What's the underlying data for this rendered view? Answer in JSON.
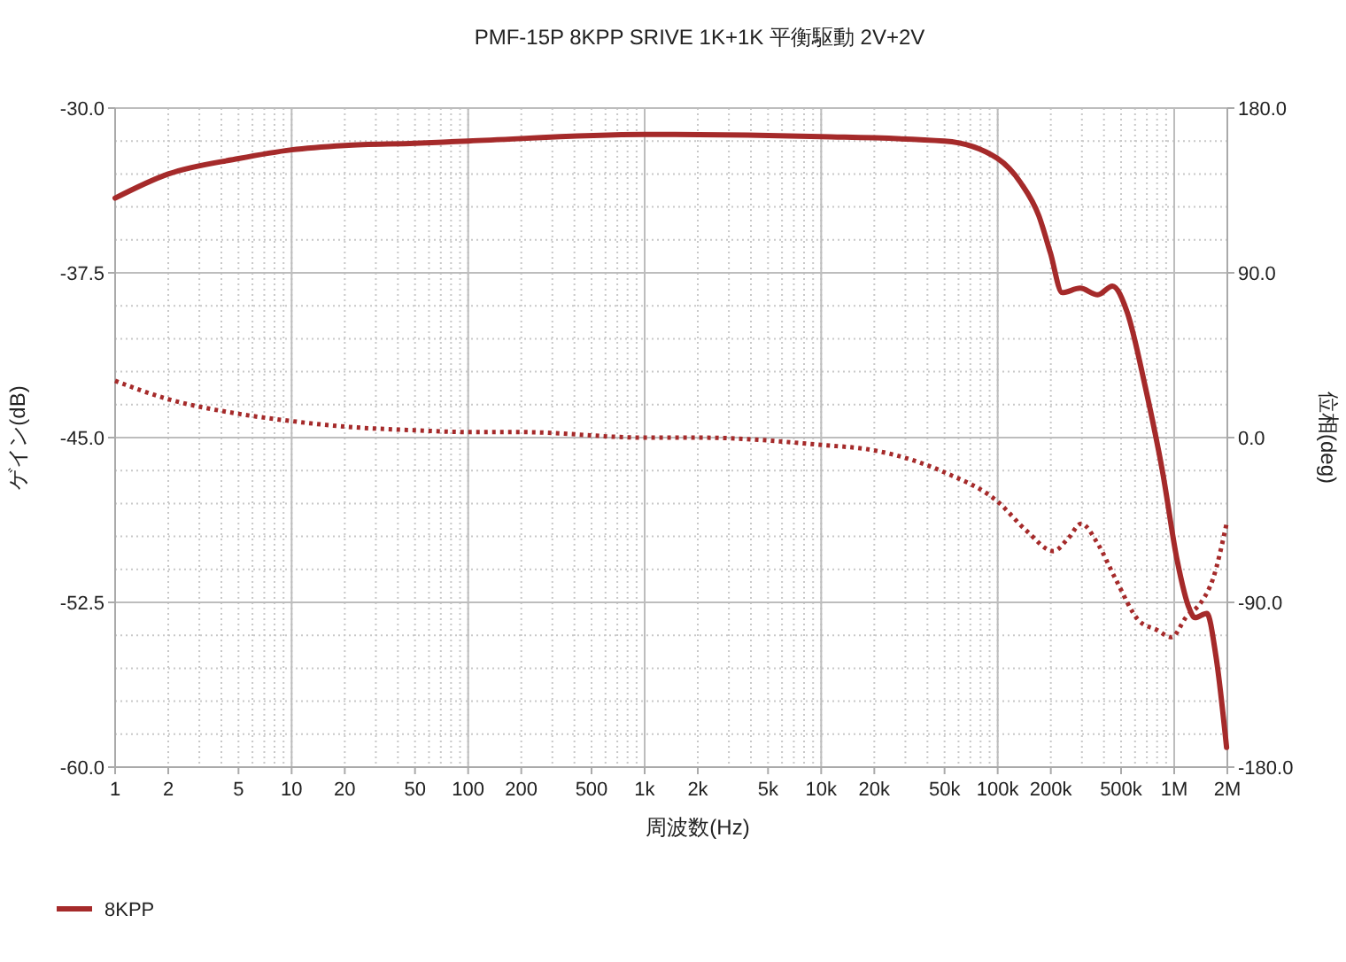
{
  "chart_data": {
    "type": "line",
    "title": "PMF-15P 8KPP SRIVE 1K+1K 平衡駆動 2V+2V",
    "xlabel": "周波数(Hz)",
    "ylabel": "ゲイン(dB)",
    "y2label": "位相(deg)",
    "log": "x",
    "grid": true,
    "legend": "bottom left",
    "xlim": [
      1,
      2000000
    ],
    "xticks": [
      {
        "value": 1,
        "label": "1"
      },
      {
        "value": 2,
        "label": "2"
      },
      {
        "value": 5,
        "label": "5"
      },
      {
        "value": 10,
        "label": "10"
      },
      {
        "value": 20,
        "label": "20"
      },
      {
        "value": 50,
        "label": "50"
      },
      {
        "value": 100,
        "label": "100"
      },
      {
        "value": 200,
        "label": "200"
      },
      {
        "value": 500,
        "label": "500"
      },
      {
        "value": 1000,
        "label": "1k"
      },
      {
        "value": 2000,
        "label": "2k"
      },
      {
        "value": 5000,
        "label": "5k"
      },
      {
        "value": 10000,
        "label": "10k"
      },
      {
        "value": 20000,
        "label": "20k"
      },
      {
        "value": 50000,
        "label": "50k"
      },
      {
        "value": 100000,
        "label": "100k"
      },
      {
        "value": 200000,
        "label": "200k"
      },
      {
        "value": 500000,
        "label": "500k"
      },
      {
        "value": 1000000,
        "label": "1M"
      },
      {
        "value": 2000000,
        "label": "2M"
      }
    ],
    "ylim": [
      -60,
      -30
    ],
    "yticks": [
      {
        "value": -60,
        "label": "-60.0"
      },
      {
        "value": -52.5,
        "label": "-52.5"
      },
      {
        "value": -45,
        "label": "-45.0"
      },
      {
        "value": -37.5,
        "label": "-37.5"
      },
      {
        "value": -30,
        "label": "-30.0"
      }
    ],
    "y2lim": [
      -180,
      180
    ],
    "y2ticks": [
      {
        "value": -180,
        "label": "-180.0"
      },
      {
        "value": -90,
        "label": "-90.0"
      },
      {
        "value": 0,
        "label": "0.0"
      },
      {
        "value": 90,
        "label": "90.0"
      },
      {
        "value": 180,
        "label": "180.0"
      }
    ],
    "series": [
      {
        "name": "8KPP",
        "color": "#a52a2a",
        "line_style": "solid",
        "axis": "y",
        "x": [
          1,
          2,
          5,
          10,
          20,
          50,
          100,
          1000,
          10000,
          50000,
          100000,
          135000,
          171000,
          199000,
          232000,
          293000,
          369000,
          447000,
          542000,
          682000,
          861000,
          1040000,
          1220000,
          1310000,
          1530000,
          1720000,
          1980000
        ],
        "values": [
          -34.1,
          -33.0,
          -32.3,
          -31.9,
          -31.7,
          -31.6,
          -31.5,
          -31.2,
          -31.3,
          -31.5,
          -32.3,
          -33.4,
          -34.9,
          -36.6,
          -38.4,
          -38.2,
          -38.5,
          -38.1,
          -39.3,
          -42.6,
          -46.6,
          -50.6,
          -52.8,
          -53.2,
          -53.0,
          -54.9,
          -59.1
        ]
      },
      {
        "color": "#a52a2a",
        "line_style": "dotted",
        "axis": "y2",
        "x": [
          1,
          2,
          5,
          10,
          20,
          50,
          100,
          200,
          1000,
          2000,
          10000,
          20000,
          50000,
          100000,
          146000,
          207000,
          251000,
          297000,
          369000,
          464000,
          631000,
          795000,
          966000,
          1170000,
          1420000,
          1660000,
          1980000
        ],
        "values": [
          31,
          21,
          13,
          9,
          6,
          4,
          3,
          3,
          0,
          0,
          -4,
          -7,
          -19,
          -35,
          -51,
          -62,
          -55,
          -47,
          -58,
          -77,
          -100,
          -105,
          -109,
          -98,
          -90,
          -77,
          -47
        ]
      }
    ]
  }
}
